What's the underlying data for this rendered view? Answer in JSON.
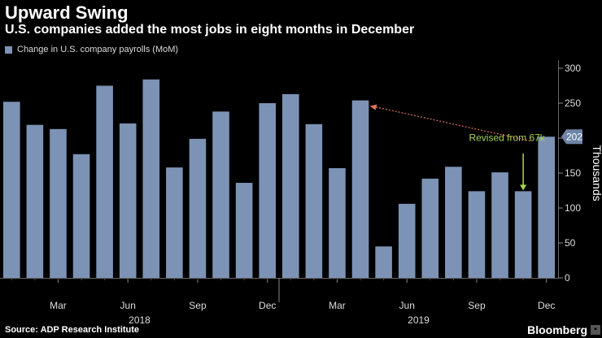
{
  "title": "Upward Swing",
  "subtitle": "U.S. companies added the most jobs in eight months in December",
  "legend_label": "Change in U.S. company payrolls (MoM)",
  "source": "Source: ADP Research Institute",
  "brand": "Bloomberg",
  "colors": {
    "bar": "#7d93b5",
    "annotation_arrow": "#a6d64e",
    "trend_arrow": "#d8745a",
    "grid": "#333333"
  },
  "chart_data": {
    "type": "bar",
    "series": [
      {
        "name": "Change in U.S. company payrolls (MoM)",
        "values": [
          252,
          219,
          213,
          177,
          275,
          221,
          284,
          158,
          199,
          238,
          136,
          250,
          263,
          220,
          157,
          254,
          45,
          106,
          142,
          159,
          124,
          151,
          124,
          202
        ]
      }
    ],
    "month_ticks": [
      {
        "index": 2,
        "label": "Mar"
      },
      {
        "index": 5,
        "label": "Jun"
      },
      {
        "index": 8,
        "label": "Sep"
      },
      {
        "index": 11,
        "label": "Dec"
      },
      {
        "index": 14,
        "label": "Mar"
      },
      {
        "index": 17,
        "label": "Jun"
      },
      {
        "index": 20,
        "label": "Sep"
      },
      {
        "index": 23,
        "label": "Dec"
      }
    ],
    "year_labels": [
      {
        "index": 5.5,
        "label": "2018"
      },
      {
        "index": 17.5,
        "label": "2019"
      }
    ],
    "ylim": [
      0,
      300
    ],
    "yticks": [
      0,
      50,
      100,
      150,
      200,
      250,
      300
    ],
    "ylabel": "Thousands",
    "last_value_label": "202",
    "annotation": {
      "text": "Revised from 67k",
      "index": 22
    },
    "trend_arrow": {
      "from_index": 23,
      "from_value": 196,
      "to_index": 15.4,
      "to_value": 246
    },
    "grid": false
  }
}
